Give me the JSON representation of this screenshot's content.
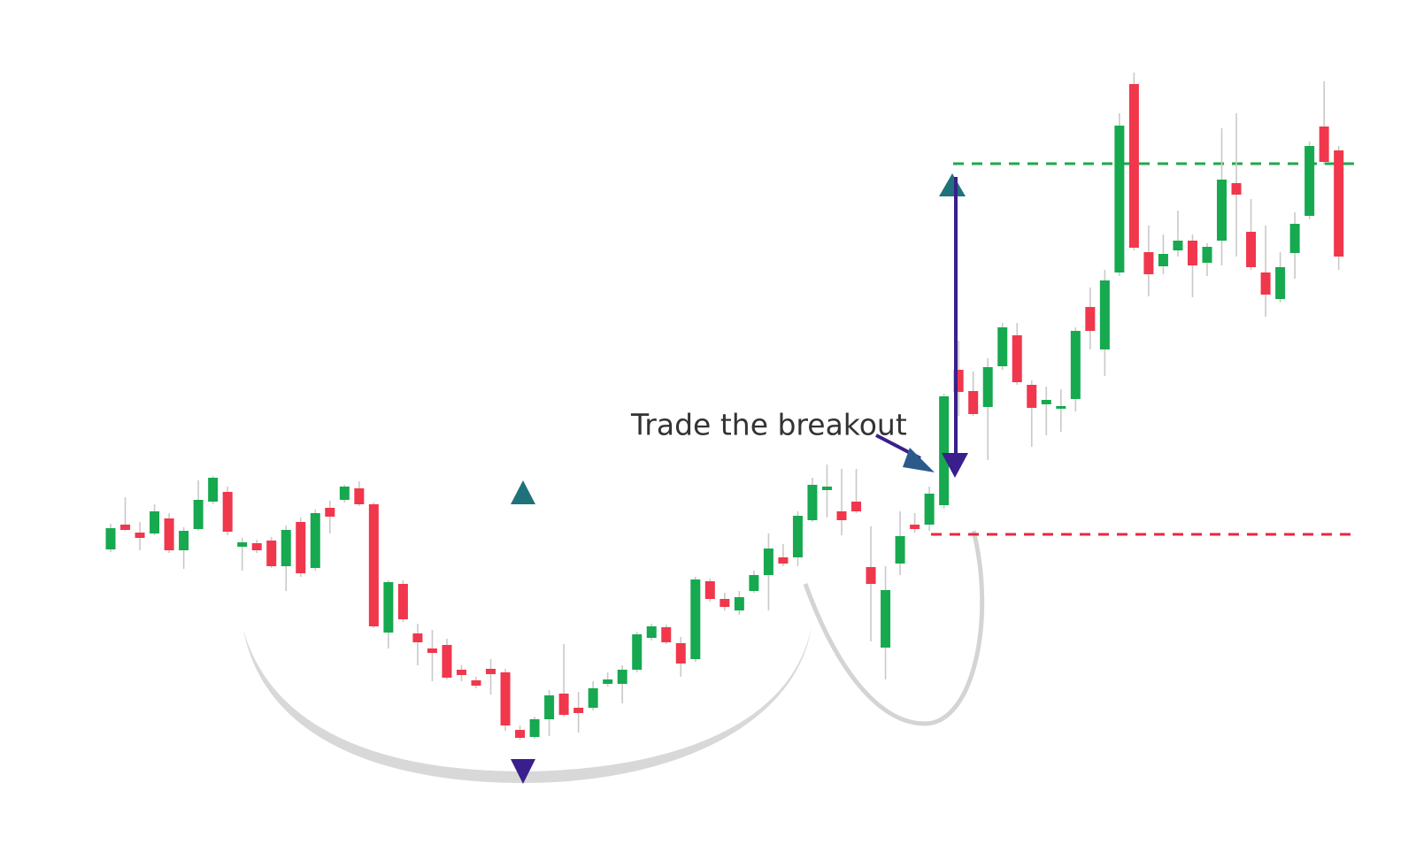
{
  "chart_data": {
    "type": "candlestick",
    "annotation": "Trade the breakout",
    "ylim": [
      20,
      1000
    ],
    "up_color": "#16a94f",
    "down_color": "#f0374c",
    "wick_color": "#c9c9c9",
    "open": [
      379,
      407,
      398,
      397,
      414,
      378,
      402,
      433,
      444,
      382,
      386,
      389,
      360,
      410,
      358,
      426,
      435,
      448,
      430,
      285,
      340,
      284,
      267,
      271,
      243,
      231,
      244,
      240,
      175,
      167,
      187,
      216,
      200,
      200,
      227,
      227,
      243,
      279,
      291,
      273,
      255,
      343,
      323,
      310,
      332,
      350,
      370,
      370,
      412,
      446,
      422,
      433,
      359,
      268,
      363,
      407,
      407,
      429,
      582,
      558,
      540,
      586,
      621,
      565,
      543,
      538,
      549,
      653,
      605,
      692,
      905,
      715,
      699,
      717,
      728,
      703,
      728,
      793,
      738,
      692,
      662,
      714,
      756,
      857,
      830
    ],
    "high": [
      408,
      438,
      410,
      430,
      420,
      404,
      457,
      462,
      450,
      392,
      390,
      393,
      406,
      415,
      424,
      434,
      452,
      456,
      432,
      344,
      344,
      295,
      288,
      278,
      248,
      235,
      255,
      244,
      180,
      190,
      220,
      272,
      218,
      230,
      240,
      248,
      286,
      295,
      294,
      280,
      348,
      346,
      330,
      332,
      355,
      397,
      385,
      422,
      460,
      475,
      470,
      470,
      405,
      360,
      422,
      420,
      450,
      555,
      615,
      580,
      595,
      635,
      635,
      570,
      563,
      560,
      630,
      675,
      695,
      872,
      918,
      745,
      735,
      762,
      735,
      725,
      855,
      872,
      775,
      745,
      715,
      760,
      840,
      908,
      835
    ],
    "low": [
      376,
      400,
      378,
      395,
      375,
      357,
      400,
      430,
      395,
      355,
      375,
      358,
      332,
      348,
      355,
      397,
      432,
      428,
      290,
      267,
      297,
      248,
      230,
      232,
      230,
      222,
      215,
      174,
      164,
      165,
      168,
      190,
      172,
      197,
      224,
      205,
      240,
      276,
      272,
      235,
      252,
      320,
      310,
      305,
      330,
      310,
      360,
      360,
      410,
      415,
      395,
      420,
      275,
      232,
      350,
      398,
      400,
      425,
      530,
      530,
      480,
      582,
      565,
      495,
      508,
      512,
      535,
      605,
      575,
      688,
      717,
      665,
      690,
      710,
      664,
      688,
      700,
      710,
      695,
      642,
      658,
      685,
      752,
      814,
      695
    ],
    "close": [
      403,
      401,
      392,
      422,
      378,
      400,
      435,
      460,
      399,
      387,
      378,
      360,
      401,
      352,
      420,
      416,
      450,
      430,
      292,
      342,
      300,
      274,
      262,
      234,
      237,
      225,
      238,
      180,
      166,
      187,
      214,
      192,
      194,
      222,
      232,
      243,
      283,
      292,
      274,
      250,
      345,
      323,
      314,
      325,
      350,
      380,
      363,
      417,
      452,
      450,
      412,
      422,
      340,
      333,
      394,
      402,
      442,
      552,
      557,
      532,
      585,
      630,
      568,
      539,
      548,
      541,
      626,
      626,
      683,
      858,
      720,
      690,
      713,
      728,
      700,
      721,
      797,
      780,
      698,
      667,
      698,
      747,
      835,
      817,
      710
    ],
    "levels": {
      "resistance": 470,
      "target": 815,
      "stop": 396
    },
    "level_colors": {
      "resistance": "#2b2f8f",
      "target": "#1fa84a",
      "stop": "#e8283f"
    }
  }
}
